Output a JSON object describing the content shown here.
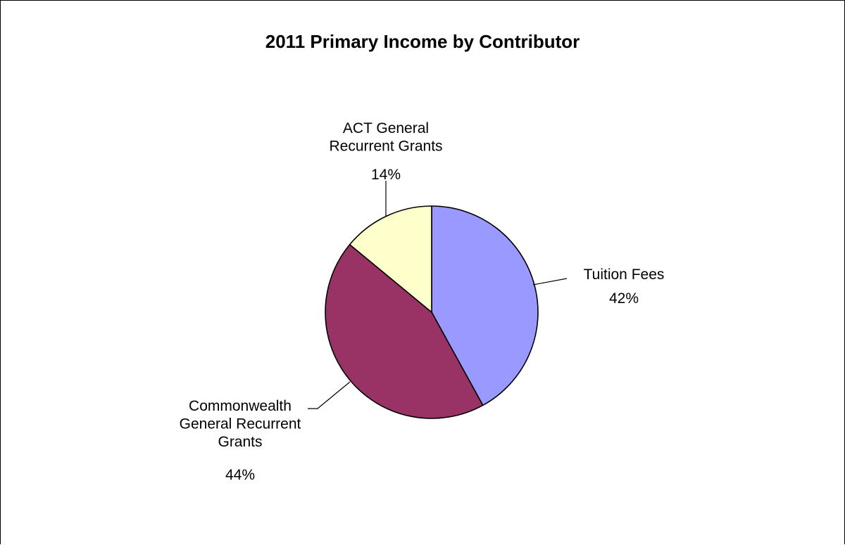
{
  "chart_data": {
    "type": "pie",
    "title": "2011 Primary Income by Contributor",
    "slices": [
      {
        "name": "Tuition Fees",
        "value": 42,
        "label": "42%",
        "color": "#9999FF"
      },
      {
        "name": "Commonwealth General Recurrent Grants",
        "value": 44,
        "label": "44%",
        "color": "#993366"
      },
      {
        "name": "ACT General Recurrent Grants",
        "value": 14,
        "label": "14%",
        "color": "#FFFFCC"
      }
    ],
    "legend": "none",
    "start_angle": "12 o'clock",
    "direction": "clockwise",
    "border_color": "#000000"
  }
}
